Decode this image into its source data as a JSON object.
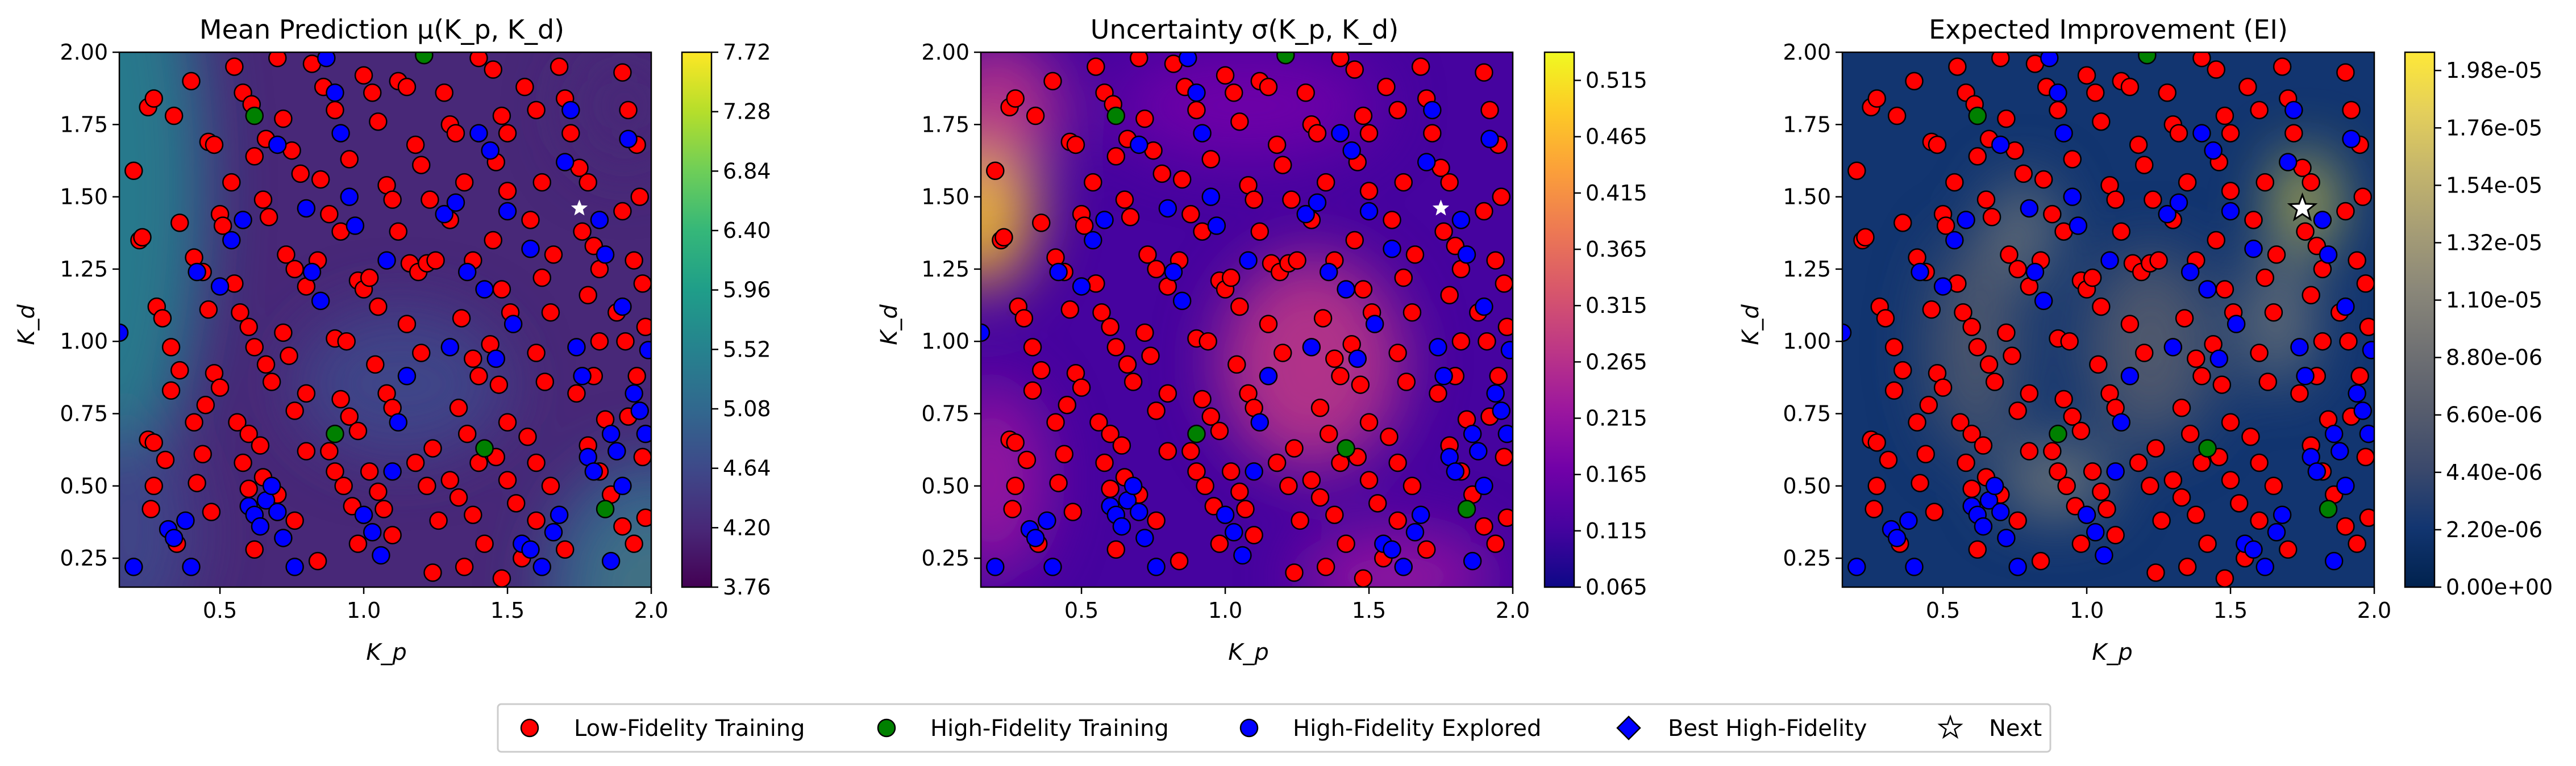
{
  "chart_data": [
    {
      "type": "heatmap",
      "title": "Mean Prediction μ(K_p, K_d)",
      "xlabel": "K_p",
      "ylabel": "K_d",
      "xlim": [
        0.15,
        2.0
      ],
      "ylim": [
        0.15,
        2.0
      ],
      "xticks": [
        "0.5",
        "1.0",
        "1.5",
        "2.0"
      ],
      "xtick_values": [
        0.5,
        1.0,
        1.5,
        2.0
      ],
      "yticks": [
        "0.25",
        "0.50",
        "0.75",
        "1.00",
        "1.25",
        "1.50",
        "1.75",
        "2.00"
      ],
      "ytick_values": [
        0.25,
        0.5,
        0.75,
        1.0,
        1.25,
        1.5,
        1.75,
        2.0
      ],
      "colormap": "viridis",
      "colorbar": {
        "min": 3.76,
        "max": 7.72,
        "ticks": [
          "3.76",
          "4.20",
          "4.64",
          "5.08",
          "5.52",
          "5.96",
          "6.40",
          "6.84",
          "7.28",
          "7.72"
        ],
        "tick_values": [
          3.76,
          4.2,
          4.64,
          5.08,
          5.52,
          5.96,
          6.4,
          6.84,
          7.28,
          7.72
        ]
      },
      "next_marker": {
        "x": 1.75,
        "y": 1.46,
        "color": "#ffffff"
      }
    },
    {
      "type": "heatmap",
      "title": "Uncertainty σ(K_p, K_d)",
      "xlabel": "K_p",
      "ylabel": "K_d",
      "xlim": [
        0.15,
        2.0
      ],
      "ylim": [
        0.15,
        2.0
      ],
      "xticks": [
        "0.5",
        "1.0",
        "1.5",
        "2.0"
      ],
      "xtick_values": [
        0.5,
        1.0,
        1.5,
        2.0
      ],
      "yticks": [
        "0.25",
        "0.50",
        "0.75",
        "1.00",
        "1.25",
        "1.50",
        "1.75",
        "2.00"
      ],
      "ytick_values": [
        0.25,
        0.5,
        0.75,
        1.0,
        1.25,
        1.5,
        1.75,
        2.0
      ],
      "colormap": "plasma",
      "colorbar": {
        "min": 0.065,
        "max": 0.54,
        "ticks": [
          "0.065",
          "0.115",
          "0.165",
          "0.215",
          "0.265",
          "0.315",
          "0.365",
          "0.415",
          "0.465",
          "0.515"
        ],
        "tick_values": [
          0.065,
          0.115,
          0.165,
          0.215,
          0.265,
          0.315,
          0.365,
          0.415,
          0.465,
          0.515
        ]
      },
      "next_marker": {
        "x": 1.75,
        "y": 1.46,
        "color": "#ffffff"
      }
    },
    {
      "type": "heatmap",
      "title": "Expected Improvement (EI)",
      "xlabel": "K_p",
      "ylabel": "K_d",
      "xlim": [
        0.15,
        2.0
      ],
      "ylim": [
        0.15,
        2.0
      ],
      "xticks": [
        "0.5",
        "1.0",
        "1.5",
        "2.0"
      ],
      "xtick_values": [
        0.5,
        1.0,
        1.5,
        2.0
      ],
      "yticks": [
        "0.25",
        "0.50",
        "0.75",
        "1.00",
        "1.25",
        "1.50",
        "1.75",
        "2.00"
      ],
      "ytick_values": [
        0.25,
        0.5,
        0.75,
        1.0,
        1.25,
        1.5,
        1.75,
        2.0
      ],
      "colormap": "cividis",
      "colorbar": {
        "min": 0.0,
        "max": 2.05e-05,
        "ticks": [
          "0.00e+00",
          "2.20e-06",
          "4.40e-06",
          "6.60e-06",
          "8.80e-06",
          "1.10e-05",
          "1.32e-05",
          "1.54e-05",
          "1.76e-05",
          "1.98e-05"
        ],
        "tick_values": [
          0.0,
          2.2e-06,
          4.4e-06,
          6.6e-06,
          8.8e-06,
          1.1e-05,
          1.32e-05,
          1.54e-05,
          1.76e-05,
          1.98e-05
        ]
      },
      "next_marker": {
        "x": 1.75,
        "y": 1.46,
        "color": "#ffffff"
      }
    }
  ],
  "legend": {
    "placement": "bottom-center",
    "items": [
      {
        "label": "Low-Fidelity Training",
        "marker": "circle",
        "color": "#ff0000"
      },
      {
        "label": "High-Fidelity Training",
        "marker": "circle",
        "color": "#008000"
      },
      {
        "label": "High-Fidelity Explored",
        "marker": "circle",
        "color": "#0000ff"
      },
      {
        "label": "Best High-Fidelity",
        "marker": "diamond",
        "color": "#0000ff"
      },
      {
        "label": "Next",
        "marker": "star",
        "color": "#ffffff"
      }
    ]
  },
  "points": {
    "low_fidelity": [
      [
        0.2,
        1.59
      ],
      [
        0.22,
        1.35
      ],
      [
        0.23,
        1.36
      ],
      [
        0.25,
        1.81
      ],
      [
        0.27,
        1.84
      ],
      [
        0.28,
        1.12
      ],
      [
        0.3,
        1.08
      ],
      [
        0.33,
        0.98
      ],
      [
        0.36,
        0.9
      ],
      [
        0.25,
        0.66
      ],
      [
        0.27,
        0.65
      ],
      [
        0.31,
        0.59
      ],
      [
        0.27,
        0.5
      ],
      [
        0.26,
        0.42
      ],
      [
        0.35,
        0.3
      ],
      [
        0.36,
        1.41
      ],
      [
        0.41,
        1.29
      ],
      [
        0.44,
        1.24
      ],
      [
        0.46,
        1.69
      ],
      [
        0.48,
        1.68
      ],
      [
        0.5,
        1.44
      ],
      [
        0.51,
        1.4
      ],
      [
        0.46,
        1.11
      ],
      [
        0.48,
        0.89
      ],
      [
        0.5,
        0.84
      ],
      [
        0.45,
        0.78
      ],
      [
        0.41,
        0.72
      ],
      [
        0.44,
        0.61
      ],
      [
        0.42,
        0.51
      ],
      [
        0.47,
        0.41
      ],
      [
        0.55,
        1.95
      ],
      [
        0.58,
        1.86
      ],
      [
        0.61,
        1.82
      ],
      [
        0.62,
        1.64
      ],
      [
        0.65,
        1.49
      ],
      [
        0.67,
        1.43
      ],
      [
        0.55,
        1.2
      ],
      [
        0.57,
        1.1
      ],
      [
        0.6,
        1.05
      ],
      [
        0.62,
        0.98
      ],
      [
        0.66,
        0.92
      ],
      [
        0.68,
        0.86
      ],
      [
        0.56,
        0.72
      ],
      [
        0.6,
        0.68
      ],
      [
        0.64,
        0.64
      ],
      [
        0.58,
        0.58
      ],
      [
        0.6,
        0.49
      ],
      [
        0.65,
        0.53
      ],
      [
        0.7,
        0.47
      ],
      [
        0.72,
        1.77
      ],
      [
        0.75,
        1.66
      ],
      [
        0.78,
        1.58
      ],
      [
        0.73,
        1.3
      ],
      [
        0.76,
        1.25
      ],
      [
        0.8,
        1.19
      ],
      [
        0.72,
        1.03
      ],
      [
        0.74,
        0.95
      ],
      [
        0.8,
        0.82
      ],
      [
        0.76,
        0.76
      ],
      [
        0.8,
        0.62
      ],
      [
        0.82,
        1.96
      ],
      [
        0.86,
        1.88
      ],
      [
        0.9,
        1.8
      ],
      [
        0.85,
        1.56
      ],
      [
        0.88,
        1.44
      ],
      [
        0.92,
        1.38
      ],
      [
        0.9,
        1.01
      ],
      [
        0.94,
        1.0
      ],
      [
        0.98,
        1.21
      ],
      [
        1.0,
        1.18
      ],
      [
        0.92,
        0.8
      ],
      [
        0.95,
        0.74
      ],
      [
        0.98,
        0.69
      ],
      [
        0.9,
        0.55
      ],
      [
        0.93,
        0.5
      ],
      [
        0.96,
        0.43
      ],
      [
        1.0,
        1.92
      ],
      [
        1.03,
        1.86
      ],
      [
        1.05,
        1.76
      ],
      [
        1.08,
        1.54
      ],
      [
        1.1,
        1.49
      ],
      [
        1.02,
        1.22
      ],
      [
        1.05,
        1.12
      ],
      [
        1.04,
        0.92
      ],
      [
        1.08,
        0.82
      ],
      [
        1.1,
        0.77
      ],
      [
        1.02,
        0.55
      ],
      [
        1.05,
        0.48
      ],
      [
        1.07,
        0.42
      ],
      [
        1.1,
        0.33
      ],
      [
        1.12,
        1.9
      ],
      [
        1.15,
        1.88
      ],
      [
        1.18,
        1.68
      ],
      [
        1.2,
        1.61
      ],
      [
        1.23,
        1.49
      ],
      [
        1.16,
        1.27
      ],
      [
        1.19,
        1.24
      ],
      [
        1.22,
        1.27
      ],
      [
        1.25,
        1.28
      ],
      [
        1.15,
        1.06
      ],
      [
        1.2,
        0.96
      ],
      [
        1.24,
        0.63
      ],
      [
        1.18,
        0.58
      ],
      [
        1.22,
        0.5
      ],
      [
        1.26,
        0.38
      ],
      [
        1.28,
        1.86
      ],
      [
        1.3,
        1.75
      ],
      [
        1.32,
        1.72
      ],
      [
        1.35,
        1.55
      ],
      [
        1.3,
        1.42
      ],
      [
        1.38,
        1.28
      ],
      [
        1.34,
        1.08
      ],
      [
        1.38,
        0.94
      ],
      [
        1.4,
        0.88
      ],
      [
        1.33,
        0.77
      ],
      [
        1.36,
        0.68
      ],
      [
        1.4,
        0.58
      ],
      [
        1.33,
        0.46
      ],
      [
        1.38,
        0.4
      ],
      [
        1.42,
        0.3
      ],
      [
        1.45,
        1.94
      ],
      [
        1.48,
        1.78
      ],
      [
        1.5,
        1.72
      ],
      [
        1.46,
        1.62
      ],
      [
        1.5,
        1.52
      ],
      [
        1.45,
        1.35
      ],
      [
        1.48,
        1.18
      ],
      [
        1.51,
        1.1
      ],
      [
        1.44,
        0.99
      ],
      [
        1.47,
        0.85
      ],
      [
        1.5,
        0.72
      ],
      [
        1.46,
        0.6
      ],
      [
        1.5,
        0.52
      ],
      [
        1.53,
        0.44
      ],
      [
        1.56,
        1.88
      ],
      [
        1.6,
        1.8
      ],
      [
        1.62,
        1.55
      ],
      [
        1.58,
        1.42
      ],
      [
        1.62,
        1.22
      ],
      [
        1.65,
        1.1
      ],
      [
        1.6,
        0.96
      ],
      [
        1.63,
        0.86
      ],
      [
        1.57,
        0.67
      ],
      [
        1.6,
        0.58
      ],
      [
        1.65,
        0.5
      ],
      [
        1.6,
        0.38
      ],
      [
        1.68,
        1.95
      ],
      [
        1.7,
        1.84
      ],
      [
        1.72,
        1.72
      ],
      [
        1.75,
        1.6
      ],
      [
        1.78,
        1.55
      ],
      [
        1.76,
        1.38
      ],
      [
        1.8,
        1.33
      ],
      [
        1.82,
        1.25
      ],
      [
        1.78,
        1.16
      ],
      [
        1.82,
        1.0
      ],
      [
        1.8,
        0.88
      ],
      [
        1.84,
        0.73
      ],
      [
        1.78,
        0.64
      ],
      [
        1.82,
        0.55
      ],
      [
        1.86,
        0.47
      ],
      [
        1.9,
        1.93
      ],
      [
        1.92,
        1.8
      ],
      [
        1.95,
        1.68
      ],
      [
        1.9,
        1.45
      ],
      [
        1.94,
        1.28
      ],
      [
        1.97,
        1.2
      ],
      [
        1.91,
        1.0
      ],
      [
        1.95,
        0.88
      ],
      [
        1.92,
        0.74
      ],
      [
        1.97,
        0.6
      ],
      [
        1.9,
        0.36
      ],
      [
        1.94,
        0.3
      ],
      [
        1.98,
        0.39
      ],
      [
        1.96,
        1.5
      ],
      [
        1.7,
        0.28
      ],
      [
        1.55,
        0.25
      ],
      [
        1.35,
        0.22
      ],
      [
        0.98,
        0.3
      ],
      [
        0.62,
        0.28
      ],
      [
        0.76,
        0.38
      ],
      [
        0.84,
        0.24
      ],
      [
        1.24,
        0.2
      ],
      [
        1.48,
        0.18
      ],
      [
        1.88,
        1.1
      ],
      [
        1.98,
        1.05
      ],
      [
        0.34,
        1.78
      ],
      [
        0.4,
        1.9
      ],
      [
        0.7,
        1.98
      ],
      [
        1.4,
        1.98
      ],
      [
        0.66,
        1.7
      ],
      [
        1.12,
        1.38
      ],
      [
        0.88,
        0.62
      ],
      [
        1.3,
        0.52
      ],
      [
        0.54,
        1.55
      ],
      [
        0.84,
        1.28
      ],
      [
        1.66,
        1.3
      ],
      [
        1.74,
        0.82
      ],
      [
        0.33,
        0.83
      ],
      [
        0.95,
        1.63
      ]
    ],
    "high_fidelity_training": [
      [
        0.62,
        1.78
      ],
      [
        0.9,
        0.68
      ],
      [
        1.42,
        0.63
      ],
      [
        1.21,
        1.99
      ],
      [
        1.84,
        0.42
      ]
    ],
    "high_fidelity_explored": [
      [
        0.15,
        1.03
      ],
      [
        0.2,
        0.22
      ],
      [
        0.32,
        0.35
      ],
      [
        0.34,
        0.32
      ],
      [
        0.38,
        0.38
      ],
      [
        0.4,
        0.22
      ],
      [
        0.5,
        1.19
      ],
      [
        0.54,
        1.35
      ],
      [
        0.58,
        1.42
      ],
      [
        0.6,
        0.43
      ],
      [
        0.62,
        0.4
      ],
      [
        0.64,
        0.36
      ],
      [
        0.66,
        0.45
      ],
      [
        0.68,
        0.5
      ],
      [
        0.7,
        0.41
      ],
      [
        0.72,
        0.32
      ],
      [
        0.76,
        0.22
      ],
      [
        0.8,
        1.46
      ],
      [
        0.82,
        1.24
      ],
      [
        0.85,
        1.14
      ],
      [
        0.87,
        1.98
      ],
      [
        0.9,
        1.86
      ],
      [
        0.92,
        1.72
      ],
      [
        0.95,
        1.5
      ],
      [
        0.97,
        1.4
      ],
      [
        1.0,
        0.4
      ],
      [
        1.03,
        0.34
      ],
      [
        1.06,
        0.26
      ],
      [
        1.1,
        0.55
      ],
      [
        1.12,
        0.72
      ],
      [
        1.15,
        0.88
      ],
      [
        1.28,
        1.44
      ],
      [
        1.32,
        1.48
      ],
      [
        1.36,
        1.24
      ],
      [
        1.4,
        1.72
      ],
      [
        1.42,
        1.18
      ],
      [
        1.44,
        1.66
      ],
      [
        1.46,
        0.94
      ],
      [
        1.5,
        1.45
      ],
      [
        1.52,
        1.06
      ],
      [
        1.55,
        0.3
      ],
      [
        1.58,
        0.28
      ],
      [
        1.62,
        0.22
      ],
      [
        1.66,
        0.34
      ],
      [
        1.68,
        0.4
      ],
      [
        1.7,
        1.62
      ],
      [
        1.72,
        1.8
      ],
      [
        1.74,
        0.98
      ],
      [
        1.76,
        0.88
      ],
      [
        1.78,
        0.6
      ],
      [
        1.8,
        0.55
      ],
      [
        1.82,
        1.42
      ],
      [
        1.84,
        1.3
      ],
      [
        1.86,
        0.68
      ],
      [
        1.88,
        0.62
      ],
      [
        1.9,
        0.5
      ],
      [
        1.92,
        1.7
      ],
      [
        1.94,
        0.82
      ],
      [
        1.96,
        0.76
      ],
      [
        1.98,
        0.68
      ],
      [
        1.99,
        0.97
      ],
      [
        1.9,
        1.12
      ],
      [
        1.86,
        0.24
      ],
      [
        0.42,
        1.24
      ],
      [
        1.08,
        1.28
      ],
      [
        1.3,
        0.98
      ],
      [
        0.7,
        1.68
      ],
      [
        1.58,
        1.32
      ]
    ]
  }
}
